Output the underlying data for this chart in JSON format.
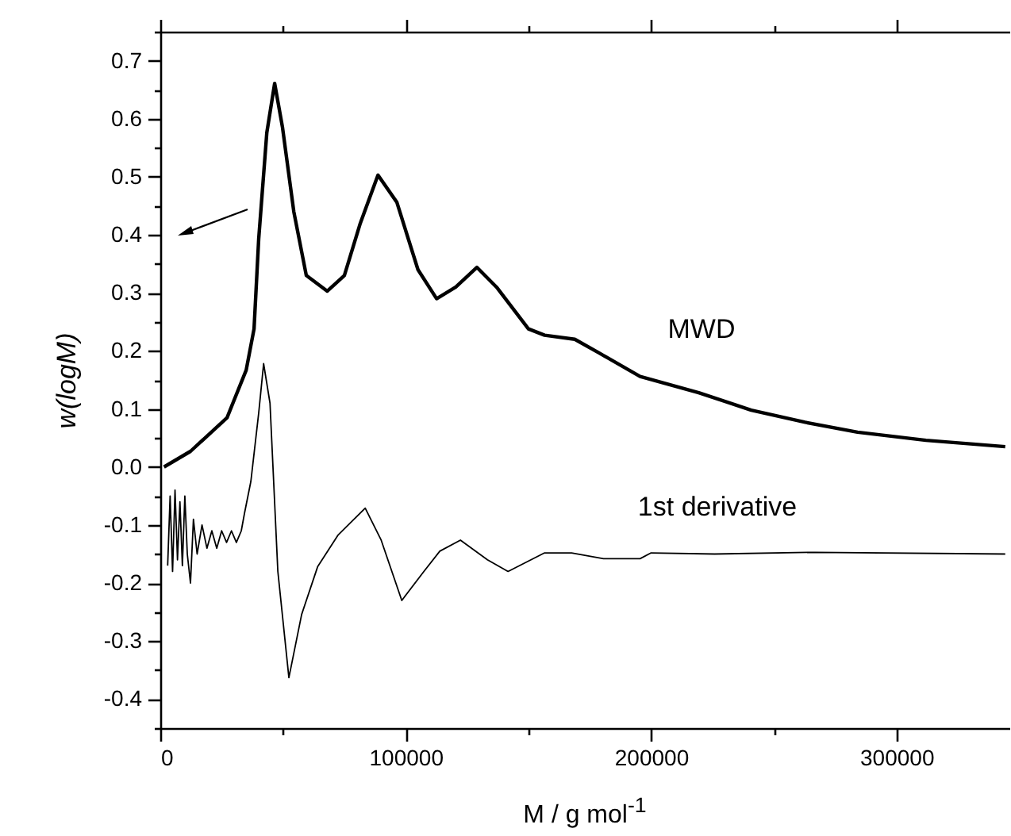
{
  "chart_data": {
    "type": "line",
    "xlabel": "M / g mol$^{-1}$",
    "ylabel": "w(logM)",
    "xlim": [
      0,
      346000
    ],
    "ylim": [
      -0.45,
      0.75
    ],
    "xticks": [
      0,
      {
        "value": 50000,
        "label": null
      },
      100000,
      {
        "value": 150000,
        "label": null
      },
      200000,
      {
        "value": 250000,
        "label": null
      },
      300000
    ],
    "yticks": [
      {
        "value": -0.45,
        "label": null
      },
      -0.4,
      {
        "value": -0.35,
        "label": null
      },
      -0.3,
      {
        "value": -0.25,
        "label": null
      },
      -0.2,
      {
        "value": -0.15,
        "label": null
      },
      -0.1,
      {
        "value": -0.05,
        "label": null
      },
      {
        "value": 0,
        "label": "0.0"
      },
      {
        "value": 0.05,
        "label": null
      },
      0.1,
      {
        "value": 0.15,
        "label": null
      },
      0.2,
      {
        "value": 0.25,
        "label": null
      },
      0.3,
      {
        "value": 0.35,
        "label": null
      },
      0.4,
      {
        "value": 0.45,
        "label": null
      },
      0.5,
      {
        "value": 0.55,
        "label": null
      },
      0.6,
      {
        "value": 0.65,
        "label": null
      },
      0.7,
      {
        "value": 0.75,
        "label": null
      }
    ],
    "marker": "none",
    "line_style": "solid",
    "series": [
      {
        "name": "MWD",
        "color": "#000000",
        "x": [
          1500,
          12300,
          27200,
          35000,
          38200,
          40100,
          43400,
          46600,
          49800,
          54400,
          59500,
          68000,
          75000,
          81500,
          88700,
          96400,
          105000,
          112600,
          120400,
          129000,
          137000,
          150000,
          156600,
          168900,
          178600,
          195500,
          219400,
          240800,
          262800,
          284100,
          312000,
          344300
        ],
        "values": [
          0.0,
          0.027,
          0.085,
          0.167,
          0.238,
          0.393,
          0.576,
          0.661,
          0.585,
          0.44,
          0.33,
          0.303,
          0.33,
          0.42,
          0.503,
          0.456,
          0.34,
          0.29,
          0.31,
          0.344,
          0.31,
          0.238,
          0.227,
          0.22,
          0.197,
          0.156,
          0.128,
          0.098,
          0.077,
          0.06,
          0.046,
          0.035
        ]
      },
      {
        "name": "1st derivative",
        "color": "#000000",
        "x": [
          3000,
          4000,
          5000,
          6000,
          7000,
          8000,
          9000,
          10000,
          11000,
          12300,
          13500,
          15000,
          17000,
          19000,
          21000,
          23000,
          25000,
          27000,
          29000,
          31000,
          33000,
          34300,
          36900,
          40100,
          42100,
          44700,
          47900,
          52400,
          57600,
          64100,
          72500,
          83500,
          90000,
          98400,
          107400,
          113900,
          122300,
          133300,
          141700,
          156600,
          167600,
          180600,
          195500,
          200000,
          225900,
          266700,
          344300
        ],
        "values": [
          -0.17,
          -0.05,
          -0.18,
          -0.04,
          -0.16,
          -0.06,
          -0.17,
          -0.05,
          -0.15,
          -0.2,
          -0.09,
          -0.15,
          -0.1,
          -0.14,
          -0.11,
          -0.14,
          -0.11,
          -0.13,
          -0.11,
          -0.13,
          -0.11,
          -0.08,
          -0.025,
          0.093,
          0.178,
          0.11,
          -0.18,
          -0.363,
          -0.254,
          -0.172,
          -0.117,
          -0.071,
          -0.126,
          -0.23,
          -0.18,
          -0.145,
          -0.126,
          -0.16,
          -0.18,
          -0.148,
          -0.148,
          -0.158,
          -0.158,
          -0.148,
          -0.15,
          -0.147,
          -0.15
        ]
      }
    ]
  }
}
